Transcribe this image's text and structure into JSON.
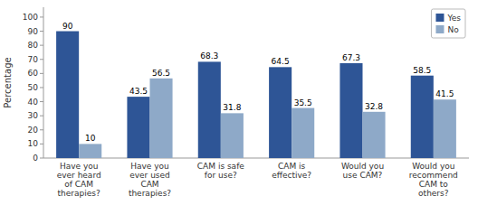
{
  "chart_data": {
    "type": "bar",
    "categories": [
      "Have you\never heard\nof CAM\ntherapies?",
      "Have you\never used\nCAM\ntherapies?",
      "CAM is safe\nfor use?",
      "CAM is\neffective?",
      "Would you\nuse CAM?",
      "Would you\nrecommend\nCAM to\nothers?"
    ],
    "series": [
      {
        "name": "Yes",
        "color": "#2E5596",
        "values": [
          90,
          43.5,
          68.3,
          64.5,
          67.3,
          58.5
        ]
      },
      {
        "name": "No",
        "color": "#8EA9C8",
        "values": [
          10,
          56.5,
          31.8,
          35.5,
          32.8,
          41.5
        ]
      }
    ],
    "ylabel": "Percentage",
    "ylim": [
      0,
      107
    ],
    "yticks": [
      0,
      10,
      20,
      30,
      40,
      50,
      60,
      70,
      80,
      90,
      100
    ],
    "legend": "upper right",
    "data_labels": true,
    "grid": false
  }
}
